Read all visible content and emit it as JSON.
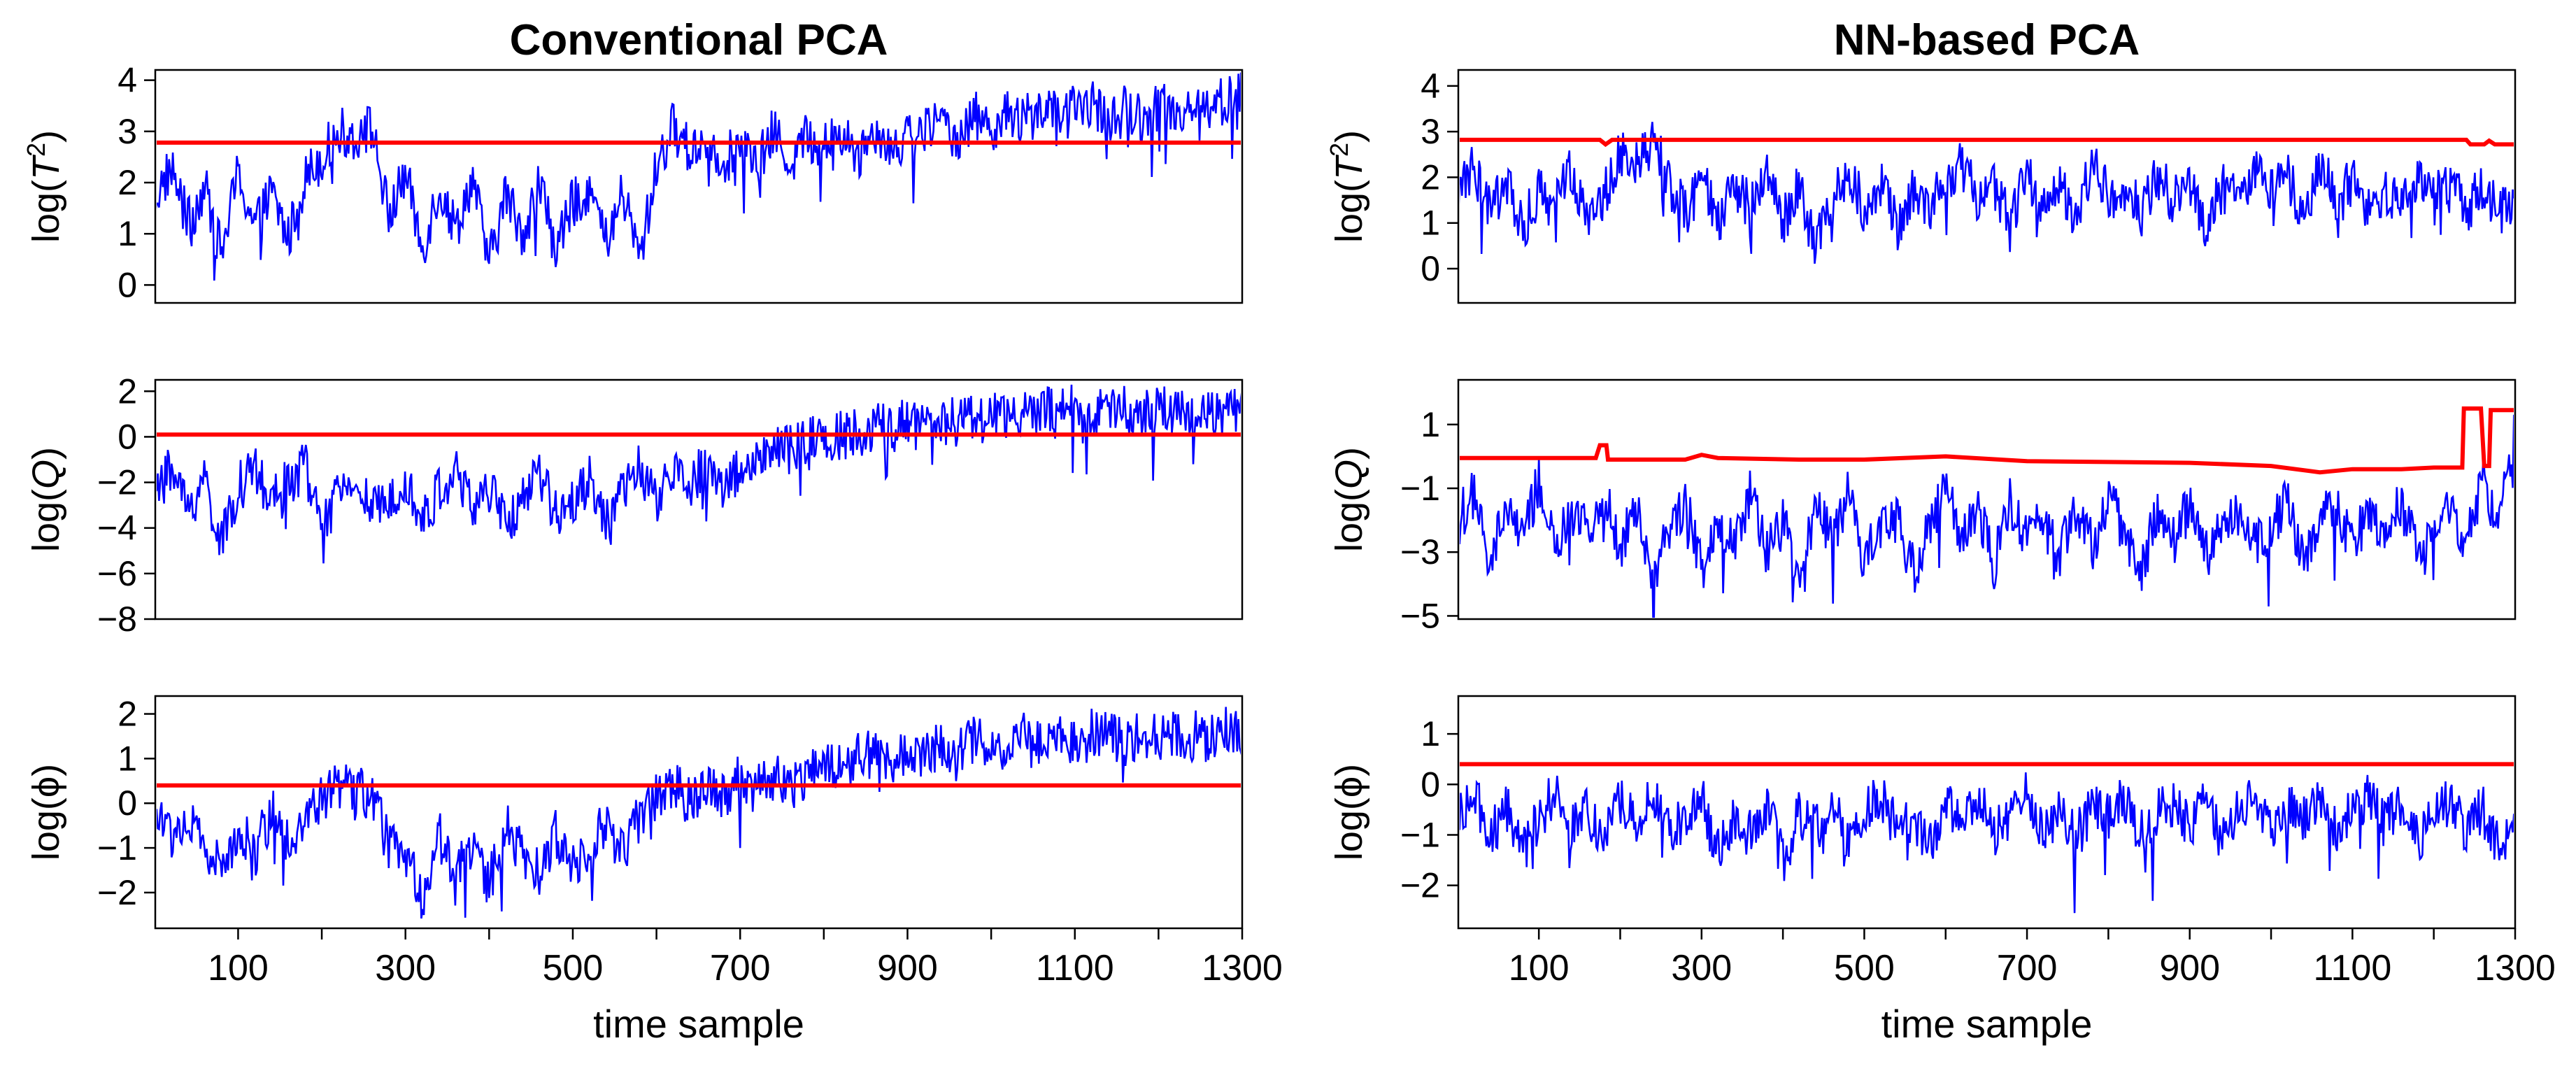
{
  "colors": {
    "monitor": "#0000ff",
    "limit": "#ff0000",
    "axis": "#000000",
    "background": "#ffffff"
  },
  "xaxis": {
    "label": "time sample",
    "range": [
      1,
      1300
    ],
    "ticks": [
      100,
      200,
      300,
      400,
      500,
      600,
      700,
      800,
      900,
      1000,
      1100,
      1200,
      1300
    ],
    "tick_labels": [
      "100",
      "300",
      "500",
      "700",
      "900",
      "1100",
      "1300"
    ]
  },
  "chart_data": [
    {
      "type": "line",
      "title": "Conventional PCA",
      "ylabel": "log(T²)",
      "ylabel_prefix": "log(",
      "ylabel_var": "T",
      "ylabel_sup": "2",
      "ylabel_suffix": ")",
      "ylim": [
        -0.35,
        4.2
      ],
      "yticks": [
        0,
        1,
        2,
        3,
        4
      ],
      "ytick_labels": [
        "0",
        "1",
        "2",
        "3",
        "4"
      ],
      "limit": [
        [
          1,
          2.78
        ],
        [
          1300,
          2.78
        ]
      ],
      "series": [
        {
          "name": "statistic",
          "x": [
            1,
            20,
            40,
            60,
            80,
            100,
            120,
            140,
            160,
            180,
            200,
            220,
            240,
            260,
            280,
            300,
            320,
            340,
            360,
            380,
            400,
            420,
            440,
            460,
            480,
            500,
            520,
            540,
            560,
            580,
            600,
            620,
            640,
            660,
            680,
            700,
            720,
            740,
            760,
            780,
            800,
            820,
            840,
            860,
            880,
            900,
            920,
            940,
            960,
            980,
            1000,
            1020,
            1040,
            1060,
            1080,
            1100,
            1120,
            1140,
            1160,
            1180,
            1200,
            1220,
            1240,
            1260,
            1280,
            1300
          ],
          "values": [
            1.7,
            2.3,
            1.2,
            1.9,
            0.6,
            2.2,
            1.1,
            1.8,
            0.9,
            2.1,
            2.5,
            3.0,
            2.9,
            3.1,
            1.3,
            2.2,
            0.7,
            1.9,
            1.1,
            2.1,
            0.4,
            1.8,
            1.0,
            2.0,
            0.7,
            1.6,
            1.9,
            0.8,
            1.8,
            0.5,
            2.3,
            3.1,
            2.6,
            2.9,
            2.4,
            2.8,
            2.3,
            3.0,
            2.4,
            2.9,
            2.7,
            3.0,
            2.5,
            3.1,
            2.7,
            2.9,
            3.0,
            3.2,
            2.9,
            3.3,
            3.1,
            3.3,
            3.2,
            3.5,
            3.3,
            3.4,
            3.6,
            3.2,
            3.4,
            3.3,
            3.5,
            3.4,
            3.5,
            3.5,
            3.6,
            3.7
          ]
        }
      ]
    },
    {
      "type": "line",
      "title": "",
      "ylabel": "log(Q)",
      "ylabel_prefix": "log(",
      "ylabel_var": "Q",
      "ylabel_sup": "",
      "ylabel_suffix": ")",
      "ylim": [
        -8.0,
        2.5
      ],
      "yticks": [
        -8,
        -6,
        -4,
        -2,
        0,
        2
      ],
      "ytick_labels": [
        "−8",
        "−6",
        "−4",
        "−2",
        "0",
        "2"
      ],
      "limit": [
        [
          1,
          0.1
        ],
        [
          1300,
          0.1
        ]
      ],
      "series": [
        {
          "name": "statistic",
          "x": [
            1,
            20,
            40,
            60,
            80,
            100,
            120,
            140,
            160,
            180,
            200,
            220,
            240,
            260,
            280,
            300,
            320,
            340,
            360,
            380,
            400,
            420,
            440,
            460,
            480,
            500,
            520,
            540,
            560,
            580,
            600,
            620,
            640,
            660,
            680,
            700,
            720,
            740,
            760,
            780,
            800,
            820,
            840,
            860,
            880,
            900,
            920,
            940,
            960,
            980,
            1000,
            1020,
            1040,
            1060,
            1080,
            1100,
            1120,
            1140,
            1160,
            1180,
            1200,
            1220,
            1240,
            1260,
            1280,
            1300
          ],
          "values": [
            -2.5,
            -1.4,
            -3.2,
            -1.8,
            -4.8,
            -2.2,
            -1.5,
            -3.0,
            -2.0,
            -1.2,
            -4.2,
            -2.6,
            -1.7,
            -3.4,
            -2.8,
            -1.6,
            -3.8,
            -2.4,
            -1.5,
            -3.1,
            -2.2,
            -4.0,
            -2.6,
            -1.8,
            -3.3,
            -2.7,
            -1.9,
            -3.5,
            -2.5,
            -1.4,
            -2.8,
            -1.6,
            -2.0,
            -1.2,
            -2.2,
            -1.4,
            -1.0,
            -0.8,
            -0.5,
            -0.3,
            -0.1,
            0.1,
            0.2,
            0.4,
            0.3,
            0.6,
            0.5,
            0.8,
            0.7,
            0.9,
            0.8,
            1.0,
            0.9,
            1.1,
            1.0,
            1.2,
            1.0,
            1.1,
            1.3,
            1.0,
            1.2,
            1.1,
            1.3,
            1.0,
            1.2,
            1.1
          ]
        }
      ]
    },
    {
      "type": "line",
      "title": "",
      "ylabel": "log(ϕ)",
      "ylabel_prefix": "log(",
      "ylabel_var": "ϕ",
      "ylabel_sup": "",
      "ylabel_suffix": ")",
      "ylim": [
        -2.8,
        2.4
      ],
      "yticks": [
        -2,
        -1,
        0,
        1,
        2
      ],
      "ytick_labels": [
        "−2",
        "−1",
        "0",
        "1",
        "2"
      ],
      "limit": [
        [
          1,
          0.4
        ],
        [
          1300,
          0.4
        ]
      ],
      "series": [
        {
          "name": "statistic",
          "x": [
            1,
            20,
            40,
            60,
            80,
            100,
            120,
            140,
            160,
            180,
            200,
            220,
            240,
            260,
            280,
            300,
            320,
            340,
            360,
            380,
            400,
            420,
            440,
            460,
            480,
            500,
            520,
            540,
            560,
            580,
            600,
            620,
            640,
            660,
            680,
            700,
            720,
            740,
            760,
            780,
            800,
            820,
            840,
            860,
            880,
            900,
            920,
            940,
            960,
            980,
            1000,
            1020,
            1040,
            1060,
            1080,
            1100,
            1120,
            1140,
            1160,
            1180,
            1200,
            1220,
            1240,
            1260,
            1280,
            1300
          ],
          "values": [
            -0.3,
            -0.7,
            -0.4,
            -1.0,
            -1.5,
            -0.6,
            -1.1,
            -0.2,
            -0.8,
            -0.4,
            0.1,
            0.4,
            0.3,
            0.1,
            -0.9,
            -1.2,
            -2.1,
            -0.7,
            -1.5,
            -0.9,
            -1.8,
            -0.5,
            -1.2,
            -1.6,
            -0.7,
            -1.4,
            -0.9,
            -0.5,
            -1.1,
            -0.3,
            0.2,
            0.4,
            0.0,
            0.5,
            0.2,
            0.6,
            0.3,
            0.6,
            0.4,
            0.7,
            0.8,
            0.9,
            1.0,
            1.1,
            1.0,
            1.2,
            1.1,
            1.3,
            1.2,
            1.4,
            1.3,
            1.3,
            1.5,
            1.4,
            1.5,
            1.4,
            1.6,
            1.5,
            1.4,
            1.6,
            1.5,
            1.5,
            1.6,
            1.4,
            1.6,
            1.5
          ]
        }
      ]
    },
    {
      "type": "line",
      "title": "NN-based PCA",
      "ylabel": "log(T²)",
      "ylabel_prefix": "log(",
      "ylabel_var": "T",
      "ylabel_sup": "2",
      "ylabel_suffix": ")",
      "ylim": [
        -0.75,
        4.35
      ],
      "yticks": [
        0,
        1,
        2,
        3,
        4
      ],
      "ytick_labels": [
        "0",
        "1",
        "2",
        "3",
        "4"
      ],
      "limit": [
        [
          1,
          2.82
        ],
        [
          175,
          2.82
        ],
        [
          182,
          2.72
        ],
        [
          190,
          2.82
        ],
        [
          1240,
          2.82
        ],
        [
          1245,
          2.72
        ],
        [
          1262,
          2.72
        ],
        [
          1268,
          2.8
        ],
        [
          1275,
          2.72
        ],
        [
          1300,
          2.72
        ]
      ],
      "series": [
        {
          "name": "statistic",
          "x": [
            1,
            20,
            40,
            60,
            80,
            100,
            120,
            140,
            160,
            180,
            200,
            220,
            240,
            260,
            280,
            300,
            320,
            340,
            360,
            380,
            400,
            420,
            440,
            460,
            480,
            500,
            520,
            540,
            560,
            580,
            600,
            620,
            640,
            660,
            680,
            700,
            720,
            740,
            760,
            780,
            800,
            820,
            840,
            860,
            880,
            900,
            920,
            940,
            960,
            980,
            1000,
            1020,
            1040,
            1060,
            1080,
            1100,
            1120,
            1140,
            1160,
            1180,
            1200,
            1220,
            1240,
            1260,
            1280,
            1300
          ],
          "values": [
            1.5,
            2.3,
            1.2,
            2.0,
            0.8,
            1.8,
            1.3,
            2.2,
            1.0,
            1.6,
            2.6,
            2.3,
            2.8,
            1.9,
            1.2,
            2.1,
            0.9,
            1.8,
            1.4,
            2.2,
            1.0,
            1.8,
            0.4,
            1.6,
            2.1,
            1.3,
            1.9,
            0.9,
            1.7,
            1.3,
            2.0,
            2.3,
            1.5,
            1.8,
            1.1,
            2.0,
            1.4,
            1.9,
            1.1,
            2.3,
            1.6,
            1.8,
            1.2,
            2.1,
            1.5,
            1.9,
            1.0,
            1.8,
            1.4,
            2.2,
            1.6,
            2.0,
            1.2,
            2.3,
            1.5,
            1.9,
            1.3,
            1.8,
            1.2,
            2.1,
            1.5,
            2.0,
            1.3,
            1.8,
            1.2,
            1.6
          ]
        }
      ]
    },
    {
      "type": "line",
      "title": "",
      "ylabel": "log(Q)",
      "ylabel_prefix": "log(",
      "ylabel_var": "Q",
      "ylabel_sup": "",
      "ylabel_suffix": ")",
      "ylim": [
        -5.1,
        2.4
      ],
      "yticks": [
        -5,
        -3,
        -1,
        1
      ],
      "ytick_labels": [
        "−5",
        "−3",
        "−1",
        "1"
      ],
      "limit": [
        [
          1,
          -0.05
        ],
        [
          170,
          -0.05
        ],
        [
          175,
          0.35
        ],
        [
          183,
          0.35
        ],
        [
          185,
          -0.1
        ],
        [
          280,
          -0.1
        ],
        [
          300,
          0.05
        ],
        [
          320,
          -0.05
        ],
        [
          420,
          -0.1
        ],
        [
          500,
          -0.1
        ],
        [
          600,
          0.0
        ],
        [
          700,
          -0.15
        ],
        [
          900,
          -0.2
        ],
        [
          1000,
          -0.3
        ],
        [
          1060,
          -0.5
        ],
        [
          1100,
          -0.4
        ],
        [
          1160,
          -0.4
        ],
        [
          1200,
          -0.35
        ],
        [
          1235,
          -0.35
        ],
        [
          1237,
          1.5
        ],
        [
          1258,
          1.5
        ],
        [
          1262,
          -0.3
        ],
        [
          1268,
          -0.3
        ],
        [
          1270,
          1.45
        ],
        [
          1300,
          1.45
        ]
      ],
      "series": [
        {
          "name": "statistic",
          "x": [
            1,
            20,
            40,
            60,
            80,
            100,
            120,
            140,
            160,
            180,
            200,
            220,
            240,
            260,
            280,
            300,
            320,
            340,
            360,
            380,
            400,
            420,
            440,
            460,
            480,
            500,
            520,
            540,
            560,
            580,
            600,
            620,
            640,
            660,
            680,
            700,
            720,
            740,
            760,
            780,
            800,
            820,
            840,
            860,
            880,
            900,
            920,
            940,
            960,
            980,
            1000,
            1020,
            1040,
            1060,
            1080,
            1100,
            1120,
            1140,
            1160,
            1180,
            1200,
            1220,
            1240,
            1260,
            1280,
            1300
          ],
          "values": [
            -2.0,
            -1.2,
            -3.6,
            -1.5,
            -2.6,
            -0.8,
            -3.0,
            -1.8,
            -2.4,
            -1.0,
            -2.8,
            -1.6,
            -3.8,
            -2.2,
            -1.4,
            -3.4,
            -1.9,
            -2.6,
            -1.1,
            -3.1,
            -2.0,
            -4.0,
            -1.7,
            -2.5,
            -1.2,
            -3.2,
            -2.1,
            -1.5,
            -3.6,
            -2.3,
            -1.0,
            -2.7,
            -1.8,
            -3.3,
            -1.4,
            -2.5,
            -2.0,
            -3.0,
            -1.6,
            -2.8,
            -1.3,
            -2.4,
            -3.5,
            -1.9,
            -2.6,
            -1.5,
            -3.1,
            -2.2,
            -1.7,
            -2.9,
            -2.3,
            -1.4,
            -3.3,
            -2.0,
            -1.6,
            -2.7,
            -1.8,
            -2.5,
            -1.4,
            -3.0,
            -2.2,
            -1.6,
            -2.8,
            -0.5,
            -2.4,
            1.1
          ]
        }
      ]
    },
    {
      "type": "line",
      "title": "",
      "ylabel": "log(ϕ)",
      "ylabel_prefix": "log(",
      "ylabel_var": "ϕ",
      "ylabel_sup": "",
      "ylabel_suffix": ")",
      "ylim": [
        -2.85,
        1.75
      ],
      "yticks": [
        -2,
        -1,
        0,
        1
      ],
      "ytick_labels": [
        "−2",
        "−1",
        "0",
        "1"
      ],
      "limit": [
        [
          1,
          0.4
        ],
        [
          1300,
          0.4
        ]
      ],
      "series": [
        {
          "name": "statistic",
          "x": [
            1,
            20,
            40,
            60,
            80,
            100,
            120,
            140,
            160,
            180,
            200,
            220,
            240,
            260,
            280,
            300,
            320,
            340,
            360,
            380,
            400,
            420,
            440,
            460,
            480,
            500,
            520,
            540,
            560,
            580,
            600,
            620,
            640,
            660,
            680,
            700,
            720,
            740,
            760,
            780,
            800,
            820,
            840,
            860,
            880,
            900,
            920,
            940,
            960,
            980,
            1000,
            1020,
            1040,
            1060,
            1080,
            1100,
            1120,
            1140,
            1160,
            1180,
            1200,
            1220,
            1240,
            1260,
            1280,
            1300
          ],
          "values": [
            -0.6,
            -0.2,
            -1.1,
            -0.4,
            -1.3,
            -0.7,
            -0.1,
            -0.9,
            -0.5,
            -1.2,
            -0.3,
            -0.8,
            -0.2,
            -1.0,
            -0.6,
            -0.3,
            -1.4,
            -0.7,
            -1.0,
            -0.4,
            -1.5,
            -0.6,
            -0.9,
            -0.3,
            -1.1,
            -0.5,
            -0.2,
            -0.9,
            -0.6,
            -1.2,
            -0.4,
            -0.8,
            -0.3,
            -1.0,
            -0.6,
            -0.2,
            -0.9,
            -0.5,
            -1.1,
            -0.4,
            -0.7,
            -0.3,
            -1.0,
            -0.6,
            -0.4,
            -0.8,
            -0.3,
            -1.2,
            -0.5,
            -0.2,
            -0.9,
            -0.4,
            -0.7,
            -0.3,
            -1.0,
            -0.5,
            -0.2,
            -0.8,
            -0.4,
            -1.1,
            -0.6,
            -0.3,
            -0.9,
            -0.5,
            -1.2,
            -0.7
          ]
        }
      ]
    }
  ]
}
